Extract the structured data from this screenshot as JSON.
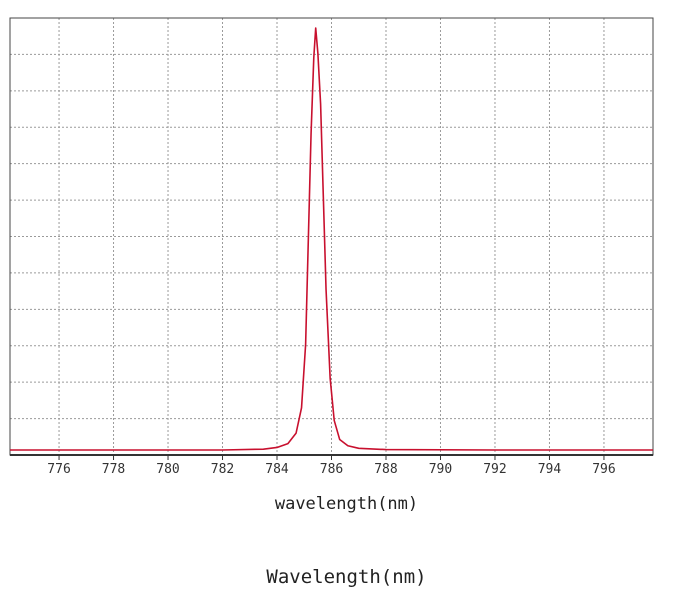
{
  "chart_data": {
    "type": "line",
    "title": "",
    "xlabel": "wavelength(nm)",
    "ylabel": "",
    "xlim": [
      774.2,
      797.8
    ],
    "ylim": [
      0,
      1.0
    ],
    "x_ticks": [
      776,
      778,
      780,
      782,
      784,
      786,
      788,
      790,
      792,
      794,
      796
    ],
    "x_tick_labels": [
      "776",
      "778",
      "780",
      "782",
      "784",
      "786",
      "788",
      "790",
      "792",
      "794",
      "796"
    ],
    "grid": true,
    "legend": "none",
    "series": [
      {
        "color": "#c8102e",
        "x": [
          774.2,
          778,
          782,
          783.5,
          784.0,
          784.4,
          784.7,
          784.9,
          785.05,
          785.15,
          785.25,
          785.35,
          785.42,
          785.5,
          785.6,
          785.7,
          785.8,
          785.95,
          786.1,
          786.3,
          786.6,
          787.0,
          788,
          792,
          797.8
        ],
        "y": [
          0.0,
          0.0,
          0.0,
          0.002,
          0.006,
          0.015,
          0.04,
          0.1,
          0.25,
          0.5,
          0.75,
          0.93,
          1.0,
          0.94,
          0.82,
          0.6,
          0.38,
          0.17,
          0.07,
          0.025,
          0.01,
          0.004,
          0.001,
          0.0,
          0.0
        ]
      }
    ]
  },
  "caption": {
    "below_chart": "wavelength(nm)",
    "below_image": "Wavelength(nm)"
  }
}
